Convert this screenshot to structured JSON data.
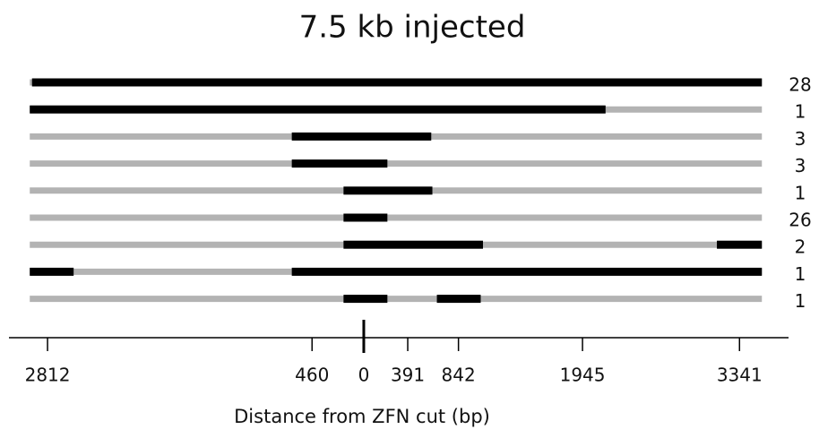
{
  "chart_data": {
    "type": "segments",
    "title": "7.5 kb injected",
    "xlabel": "Distance from ZFN cut (bp)",
    "xlim": [
      -3155,
      3777
    ],
    "xticks": [
      {
        "value": -2812,
        "label": "2812"
      },
      {
        "value": -460,
        "label": "460"
      },
      0,
      391,
      842,
      1945,
      3341
    ],
    "cut": 0,
    "extent": [
      -2970,
      3540
    ],
    "color": "#000000",
    "background_color": "#b3b3b3",
    "rows": [
      {
        "count": 28,
        "segments": [
          [
            -2950,
            3540
          ]
        ]
      },
      {
        "count": 1,
        "segments": [
          [
            -2970,
            2150
          ]
        ]
      },
      {
        "count": 3,
        "segments": [
          [
            -640,
            600
          ]
        ]
      },
      {
        "count": 3,
        "segments": [
          [
            -640,
            210
          ]
        ]
      },
      {
        "count": 1,
        "segments": [
          [
            -180,
            610
          ]
        ]
      },
      {
        "count": 26,
        "segments": [
          [
            -180,
            210
          ]
        ]
      },
      {
        "count": 2,
        "segments": [
          [
            -180,
            1060
          ],
          [
            3140,
            3540
          ]
        ]
      },
      {
        "count": 1,
        "segments": [
          [
            -2970,
            -2580
          ],
          [
            -640,
            3540
          ]
        ]
      },
      {
        "count": 1,
        "segments": [
          [
            -180,
            210
          ],
          [
            650,
            1040
          ]
        ]
      }
    ]
  }
}
